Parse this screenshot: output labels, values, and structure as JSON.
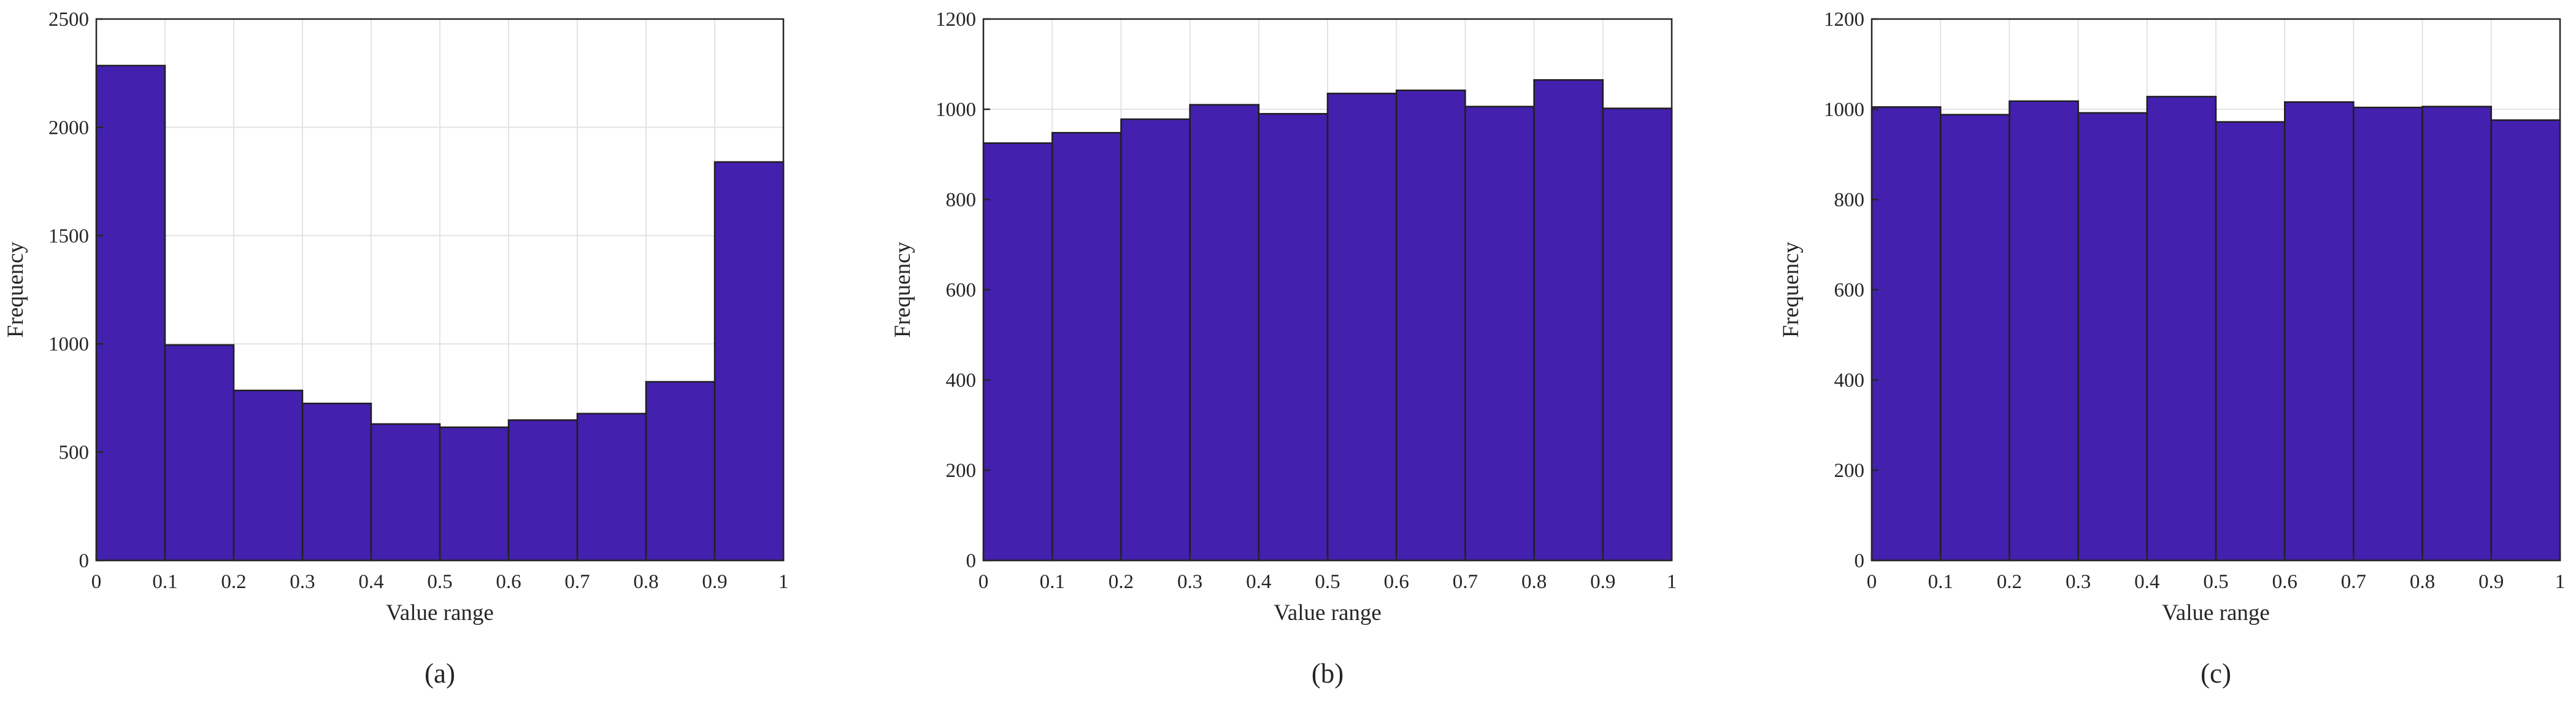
{
  "colors": {
    "bar": "#4320AD",
    "grid": "#e3e3e3",
    "axis": "#262626"
  },
  "chart_data": [
    {
      "type": "bar",
      "panel_label": "(a)",
      "xlabel": "Value range",
      "ylabel": "Frequency",
      "bin_edges": [
        0,
        0.1,
        0.2,
        0.3,
        0.4,
        0.5,
        0.6,
        0.7,
        0.8,
        0.9,
        1
      ],
      "values": [
        2285,
        995,
        785,
        725,
        630,
        615,
        648,
        678,
        825,
        1840
      ],
      "xlim": [
        0,
        1
      ],
      "ylim": [
        0,
        2500
      ],
      "xticks": [
        "0",
        "0.1",
        "0.2",
        "0.3",
        "0.4",
        "0.5",
        "0.6",
        "0.7",
        "0.8",
        "0.9",
        "1"
      ],
      "yticks": [
        "0",
        "500",
        "1000",
        "1500",
        "2000",
        "2500"
      ],
      "grid": true
    },
    {
      "type": "bar",
      "panel_label": "(b)",
      "xlabel": "Value range",
      "ylabel": "Frequency",
      "bin_edges": [
        0,
        0.1,
        0.2,
        0.3,
        0.4,
        0.5,
        0.6,
        0.7,
        0.8,
        0.9,
        1
      ],
      "values": [
        925,
        948,
        978,
        1010,
        990,
        1035,
        1042,
        1006,
        1065,
        1002
      ],
      "xlim": [
        0,
        1
      ],
      "ylim": [
        0,
        1200
      ],
      "xticks": [
        "0",
        "0.1",
        "0.2",
        "0.3",
        "0.4",
        "0.5",
        "0.6",
        "0.7",
        "0.8",
        "0.9",
        "1"
      ],
      "yticks": [
        "0",
        "200",
        "400",
        "600",
        "800",
        "1000",
        "1200"
      ],
      "grid": true
    },
    {
      "type": "bar",
      "panel_label": "(c)",
      "xlabel": "Value range",
      "ylabel": "Frequency",
      "bin_edges": [
        0,
        0.1,
        0.2,
        0.3,
        0.4,
        0.5,
        0.6,
        0.7,
        0.8,
        0.9,
        1
      ],
      "values": [
        1005,
        988,
        1018,
        992,
        1028,
        972,
        1016,
        1004,
        1006,
        976
      ],
      "xlim": [
        0,
        1
      ],
      "ylim": [
        0,
        1200
      ],
      "xticks": [
        "0",
        "0.1",
        "0.2",
        "0.3",
        "0.4",
        "0.5",
        "0.6",
        "0.7",
        "0.8",
        "0.9",
        "1"
      ],
      "yticks": [
        "0",
        "200",
        "400",
        "600",
        "800",
        "1000",
        "1200"
      ],
      "grid": true
    }
  ]
}
